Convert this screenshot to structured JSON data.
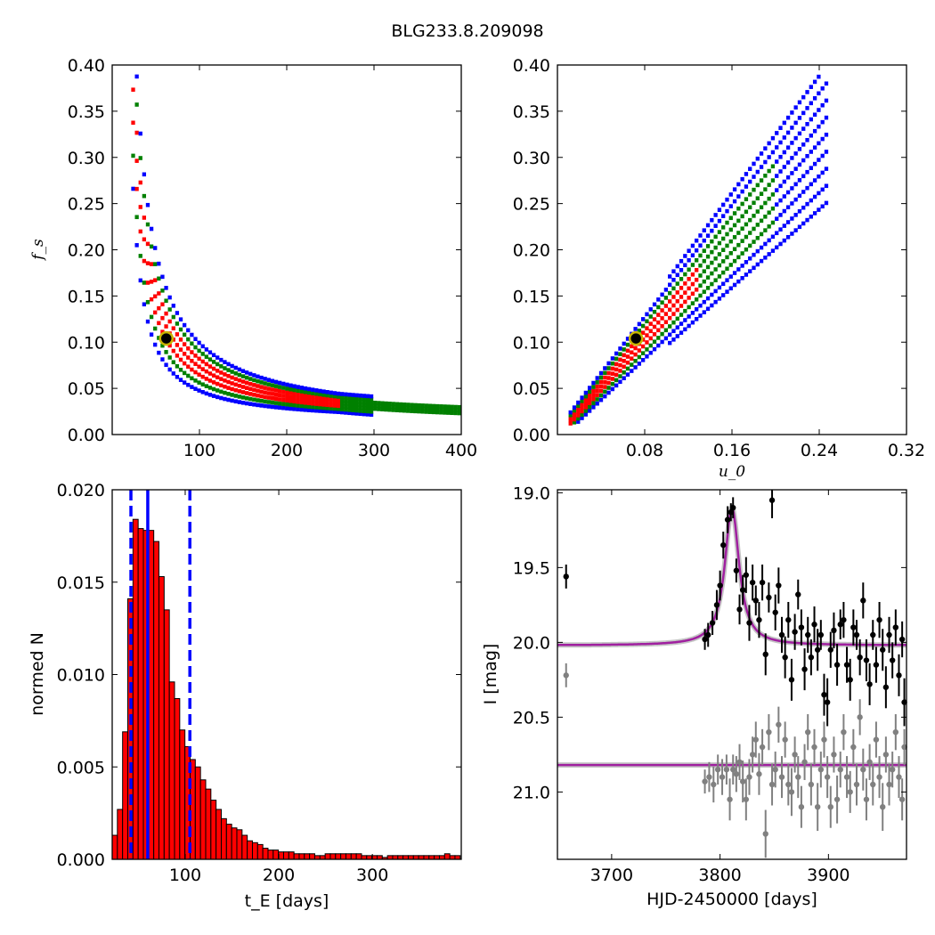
{
  "figure": {
    "title": "BLG233.8.209098"
  },
  "chart_data": [
    {
      "type": "heatmap",
      "panel": "top-left",
      "xlabel": "",
      "ylabel": "f_s",
      "xlim": [
        0,
        400
      ],
      "ylim": [
        0.0,
        0.4
      ],
      "xticks": [
        100,
        200,
        300,
        400
      ],
      "yticks": [
        0.0,
        0.05,
        0.1,
        0.15,
        0.2,
        0.25,
        0.3,
        0.35,
        0.4
      ],
      "ytick_labels": [
        "0.00",
        "0.05",
        "0.10",
        "0.15",
        "0.20",
        "0.25",
        "0.30",
        "0.35",
        "0.40"
      ],
      "levels": [
        {
          "color": "#0000ff",
          "meaning": "outer"
        },
        {
          "color": "#008000",
          "meaning": "middle"
        },
        {
          "color": "#ff0000",
          "meaning": "inner"
        },
        {
          "color": "#000000",
          "meaning": "best"
        }
      ],
      "best_fit": {
        "x": 62,
        "y": 0.104
      }
    },
    {
      "type": "heatmap",
      "panel": "top-right",
      "xlabel": "u_0",
      "ylabel": "",
      "xlim": [
        0.0,
        0.32
      ],
      "ylim": [
        0.0,
        0.4
      ],
      "xticks": [
        0.08,
        0.16,
        0.24,
        0.32
      ],
      "xtick_labels": [
        "0.08",
        "0.16",
        "0.24",
        "0.32"
      ],
      "yticks": [
        0.0,
        0.05,
        0.1,
        0.15,
        0.2,
        0.25,
        0.3,
        0.35,
        0.4
      ],
      "ytick_labels": [
        "0.00",
        "0.05",
        "0.10",
        "0.15",
        "0.20",
        "0.25",
        "0.30",
        "0.35",
        "0.40"
      ],
      "best_fit": {
        "x": 0.072,
        "y": 0.104
      }
    },
    {
      "type": "bar",
      "panel": "bottom-left",
      "xlabel": "t_E [days]",
      "ylabel": "normed N",
      "xlim": [
        22,
        395
      ],
      "ylim": [
        0.0,
        0.02
      ],
      "xticks": [
        100,
        200,
        300
      ],
      "yticks": [
        0.0,
        0.005,
        0.01,
        0.015,
        0.02
      ],
      "ytick_labels": [
        "0.000",
        "0.005",
        "0.010",
        "0.015",
        "0.020"
      ],
      "bin_width": 5.55,
      "bin_start": 22,
      "values": [
        0.0013,
        0.0027,
        0.0069,
        0.0141,
        0.0184,
        0.0179,
        0.0178,
        0.0178,
        0.0172,
        0.0153,
        0.0135,
        0.0096,
        0.0087,
        0.007,
        0.0061,
        0.0054,
        0.005,
        0.0043,
        0.0038,
        0.0032,
        0.0027,
        0.0022,
        0.0019,
        0.0017,
        0.0016,
        0.0013,
        0.001,
        0.0009,
        0.0008,
        0.0006,
        0.0005,
        0.0005,
        0.0004,
        0.0004,
        0.0004,
        0.0003,
        0.0003,
        0.0003,
        0.0003,
        0.0002,
        0.0002,
        0.0003,
        0.0003,
        0.0003,
        0.0003,
        0.0003,
        0.0003,
        0.0003,
        0.0002,
        0.0002,
        0.0002,
        0.0002,
        0.0001,
        0.0002,
        0.0002,
        0.0002,
        0.0002,
        0.0002,
        0.0002,
        0.0002,
        0.0002,
        0.0002,
        0.0002,
        0.0002,
        0.0003,
        0.0002,
        0.0002
      ],
      "bar_color": "#ff0000",
      "vlines": [
        {
          "x": 42,
          "style": "dashed",
          "color": "#0000ff"
        },
        {
          "x": 60,
          "style": "solid",
          "color": "#0000ff"
        },
        {
          "x": 105,
          "style": "dashed",
          "color": "#0000ff"
        }
      ]
    },
    {
      "type": "scatter",
      "panel": "bottom-right",
      "xlabel": "HJD-2450000 [days]",
      "ylabel": "I [mag]",
      "xlim": [
        3650,
        3972
      ],
      "ylim": [
        21.45,
        18.98
      ],
      "y_inverted": true,
      "xticks": [
        3700,
        3800,
        3900
      ],
      "yticks": [
        19.0,
        19.5,
        20.0,
        20.5,
        21.0
      ],
      "ytick_labels": [
        "19.0",
        "19.5",
        "20.0",
        "20.5",
        "21.0"
      ],
      "model": {
        "t0": 3811,
        "baseline": 20.02,
        "peak": 19.1,
        "tE": 8,
        "color": "#a020a0"
      },
      "series": [
        {
          "color": "#000000",
          "points": [
            {
              "x": 3658,
              "y": 19.56,
              "e": 0.08
            },
            {
              "x": 3786,
              "y": 19.98,
              "e": 0.07
            },
            {
              "x": 3789,
              "y": 19.95,
              "e": 0.08
            },
            {
              "x": 3793,
              "y": 19.87,
              "e": 0.08
            },
            {
              "x": 3797,
              "y": 19.75,
              "e": 0.1
            },
            {
              "x": 3800,
              "y": 19.62,
              "e": 0.1
            },
            {
              "x": 3803,
              "y": 19.35,
              "e": 0.09
            },
            {
              "x": 3807,
              "y": 19.18,
              "e": 0.09
            },
            {
              "x": 3810,
              "y": 19.13,
              "e": 0.06
            },
            {
              "x": 3812,
              "y": 19.1,
              "e": 0.07
            },
            {
              "x": 3815,
              "y": 19.52,
              "e": 0.08
            },
            {
              "x": 3818,
              "y": 19.78,
              "e": 0.1
            },
            {
              "x": 3821,
              "y": 19.65,
              "e": 0.1
            },
            {
              "x": 3824,
              "y": 19.55,
              "e": 0.12
            },
            {
              "x": 3827,
              "y": 19.87,
              "e": 0.12
            },
            {
              "x": 3830,
              "y": 19.6,
              "e": 0.12
            },
            {
              "x": 3833,
              "y": 19.72,
              "e": 0.1
            },
            {
              "x": 3836,
              "y": 19.85,
              "e": 0.12
            },
            {
              "x": 3839,
              "y": 19.6,
              "e": 0.12
            },
            {
              "x": 3842,
              "y": 20.08,
              "e": 0.14
            },
            {
              "x": 3845,
              "y": 19.7,
              "e": 0.1
            },
            {
              "x": 3848,
              "y": 19.05,
              "e": 0.12
            },
            {
              "x": 3851,
              "y": 19.8,
              "e": 0.12
            },
            {
              "x": 3854,
              "y": 19.62,
              "e": 0.12
            },
            {
              "x": 3857,
              "y": 19.95,
              "e": 0.12
            },
            {
              "x": 3860,
              "y": 20.1,
              "e": 0.14
            },
            {
              "x": 3863,
              "y": 19.85,
              "e": 0.12
            },
            {
              "x": 3866,
              "y": 20.25,
              "e": 0.14
            },
            {
              "x": 3869,
              "y": 19.93,
              "e": 0.12
            },
            {
              "x": 3872,
              "y": 19.68,
              "e": 0.1
            },
            {
              "x": 3875,
              "y": 19.9,
              "e": 0.12
            },
            {
              "x": 3878,
              "y": 20.18,
              "e": 0.14
            },
            {
              "x": 3881,
              "y": 19.95,
              "e": 0.12
            },
            {
              "x": 3884,
              "y": 20.1,
              "e": 0.12
            },
            {
              "x": 3887,
              "y": 19.88,
              "e": 0.12
            },
            {
              "x": 3890,
              "y": 20.05,
              "e": 0.14
            },
            {
              "x": 3893,
              "y": 19.95,
              "e": 0.1
            },
            {
              "x": 3896,
              "y": 20.35,
              "e": 0.14
            },
            {
              "x": 3899,
              "y": 20.4,
              "e": 0.16
            },
            {
              "x": 3902,
              "y": 20.05,
              "e": 0.12
            },
            {
              "x": 3905,
              "y": 19.92,
              "e": 0.12
            },
            {
              "x": 3908,
              "y": 20.15,
              "e": 0.14
            },
            {
              "x": 3911,
              "y": 19.88,
              "e": 0.1
            },
            {
              "x": 3914,
              "y": 19.85,
              "e": 0.12
            },
            {
              "x": 3917,
              "y": 20.15,
              "e": 0.12
            },
            {
              "x": 3920,
              "y": 20.25,
              "e": 0.14
            },
            {
              "x": 3923,
              "y": 19.9,
              "e": 0.12
            },
            {
              "x": 3926,
              "y": 19.95,
              "e": 0.1
            },
            {
              "x": 3929,
              "y": 20.1,
              "e": 0.12
            },
            {
              "x": 3932,
              "y": 19.72,
              "e": 0.12
            },
            {
              "x": 3935,
              "y": 20.12,
              "e": 0.14
            },
            {
              "x": 3938,
              "y": 20.28,
              "e": 0.14
            },
            {
              "x": 3941,
              "y": 19.95,
              "e": 0.1
            },
            {
              "x": 3944,
              "y": 20.15,
              "e": 0.12
            },
            {
              "x": 3947,
              "y": 19.85,
              "e": 0.12
            },
            {
              "x": 3950,
              "y": 20.05,
              "e": 0.14
            },
            {
              "x": 3953,
              "y": 20.3,
              "e": 0.14
            },
            {
              "x": 3956,
              "y": 19.95,
              "e": 0.12
            },
            {
              "x": 3959,
              "y": 20.12,
              "e": 0.12
            },
            {
              "x": 3962,
              "y": 19.9,
              "e": 0.12
            },
            {
              "x": 3965,
              "y": 20.22,
              "e": 0.14
            },
            {
              "x": 3968,
              "y": 19.98,
              "e": 0.12
            },
            {
              "x": 3970,
              "y": 20.4,
              "e": 0.16
            }
          ]
        },
        {
          "color": "#808080",
          "points": [
            {
              "x": 3658,
              "y": 20.22,
              "e": 0.08
            },
            {
              "x": 3786,
              "y": 20.93,
              "e": 0.08
            },
            {
              "x": 3790,
              "y": 20.9,
              "e": 0.1
            },
            {
              "x": 3794,
              "y": 20.95,
              "e": 0.12
            },
            {
              "x": 3798,
              "y": 20.85,
              "e": 0.1
            },
            {
              "x": 3802,
              "y": 20.9,
              "e": 0.12
            },
            {
              "x": 3806,
              "y": 20.85,
              "e": 0.1
            },
            {
              "x": 3809,
              "y": 21.05,
              "e": 0.14
            },
            {
              "x": 3812,
              "y": 20.85,
              "e": 0.1
            },
            {
              "x": 3815,
              "y": 20.88,
              "e": 0.12
            },
            {
              "x": 3818,
              "y": 20.8,
              "e": 0.12
            },
            {
              "x": 3821,
              "y": 20.93,
              "e": 0.14
            },
            {
              "x": 3824,
              "y": 21.05,
              "e": 0.14
            },
            {
              "x": 3827,
              "y": 20.9,
              "e": 0.12
            },
            {
              "x": 3830,
              "y": 20.75,
              "e": 0.12
            },
            {
              "x": 3833,
              "y": 20.65,
              "e": 0.12
            },
            {
              "x": 3836,
              "y": 20.88,
              "e": 0.14
            },
            {
              "x": 3839,
              "y": 20.7,
              "e": 0.12
            },
            {
              "x": 3842,
              "y": 21.28,
              "e": 0.16
            },
            {
              "x": 3845,
              "y": 20.6,
              "e": 0.12
            },
            {
              "x": 3848,
              "y": 20.95,
              "e": 0.14
            },
            {
              "x": 3851,
              "y": 20.85,
              "e": 0.12
            },
            {
              "x": 3854,
              "y": 20.55,
              "e": 0.12
            },
            {
              "x": 3857,
              "y": 20.9,
              "e": 0.14
            },
            {
              "x": 3860,
              "y": 20.65,
              "e": 0.12
            },
            {
              "x": 3863,
              "y": 20.95,
              "e": 0.14
            },
            {
              "x": 3866,
              "y": 21.0,
              "e": 0.16
            },
            {
              "x": 3869,
              "y": 20.75,
              "e": 0.12
            },
            {
              "x": 3872,
              "y": 20.9,
              "e": 0.14
            },
            {
              "x": 3875,
              "y": 21.1,
              "e": 0.14
            },
            {
              "x": 3878,
              "y": 20.8,
              "e": 0.12
            },
            {
              "x": 3881,
              "y": 20.6,
              "e": 0.12
            },
            {
              "x": 3884,
              "y": 20.95,
              "e": 0.14
            },
            {
              "x": 3887,
              "y": 20.7,
              "e": 0.12
            },
            {
              "x": 3890,
              "y": 21.1,
              "e": 0.16
            },
            {
              "x": 3893,
              "y": 20.85,
              "e": 0.12
            },
            {
              "x": 3896,
              "y": 20.65,
              "e": 0.12
            },
            {
              "x": 3899,
              "y": 20.9,
              "e": 0.14
            },
            {
              "x": 3902,
              "y": 21.1,
              "e": 0.14
            },
            {
              "x": 3905,
              "y": 20.75,
              "e": 0.12
            },
            {
              "x": 3908,
              "y": 21.05,
              "e": 0.16
            },
            {
              "x": 3911,
              "y": 20.85,
              "e": 0.12
            },
            {
              "x": 3914,
              "y": 20.6,
              "e": 0.12
            },
            {
              "x": 3917,
              "y": 20.9,
              "e": 0.14
            },
            {
              "x": 3920,
              "y": 21.0,
              "e": 0.14
            },
            {
              "x": 3923,
              "y": 20.7,
              "e": 0.12
            },
            {
              "x": 3926,
              "y": 20.95,
              "e": 0.14
            },
            {
              "x": 3929,
              "y": 20.5,
              "e": 0.12
            },
            {
              "x": 3932,
              "y": 20.85,
              "e": 0.14
            },
            {
              "x": 3935,
              "y": 21.05,
              "e": 0.14
            },
            {
              "x": 3938,
              "y": 20.8,
              "e": 0.12
            },
            {
              "x": 3941,
              "y": 20.95,
              "e": 0.14
            },
            {
              "x": 3944,
              "y": 20.65,
              "e": 0.12
            },
            {
              "x": 3947,
              "y": 20.9,
              "e": 0.14
            },
            {
              "x": 3950,
              "y": 21.1,
              "e": 0.16
            },
            {
              "x": 3953,
              "y": 20.75,
              "e": 0.12
            },
            {
              "x": 3956,
              "y": 20.95,
              "e": 0.14
            },
            {
              "x": 3959,
              "y": 20.85,
              "e": 0.12
            },
            {
              "x": 3962,
              "y": 20.6,
              "e": 0.12
            },
            {
              "x": 3965,
              "y": 20.9,
              "e": 0.14
            },
            {
              "x": 3968,
              "y": 21.05,
              "e": 0.14
            },
            {
              "x": 3970,
              "y": 20.7,
              "e": 0.12
            }
          ]
        }
      ],
      "baseline_model": {
        "value": 20.82,
        "color": "#a020a0"
      }
    }
  ]
}
